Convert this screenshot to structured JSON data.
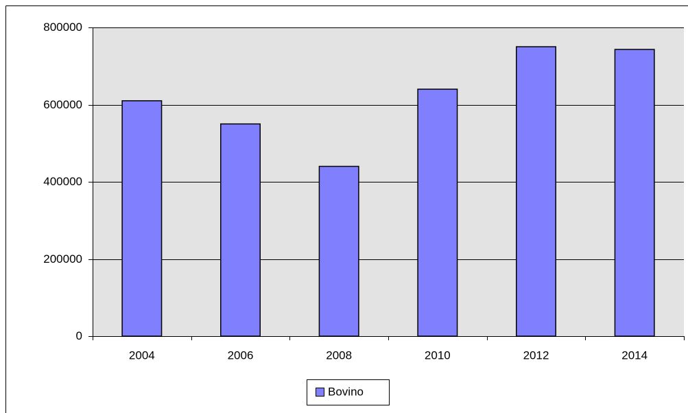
{
  "chart_data": {
    "type": "bar",
    "categories": [
      "2004",
      "2006",
      "2008",
      "2010",
      "2012",
      "2014"
    ],
    "series": [
      {
        "name": "Bovino",
        "color": "#8080ff",
        "values": [
          610000,
          550000,
          440000,
          640000,
          750000,
          743000
        ]
      }
    ],
    "ylim": [
      0,
      800000
    ],
    "yticks": [
      0,
      200000,
      400000,
      600000,
      800000
    ],
    "grid": true,
    "legend": "bottom"
  }
}
